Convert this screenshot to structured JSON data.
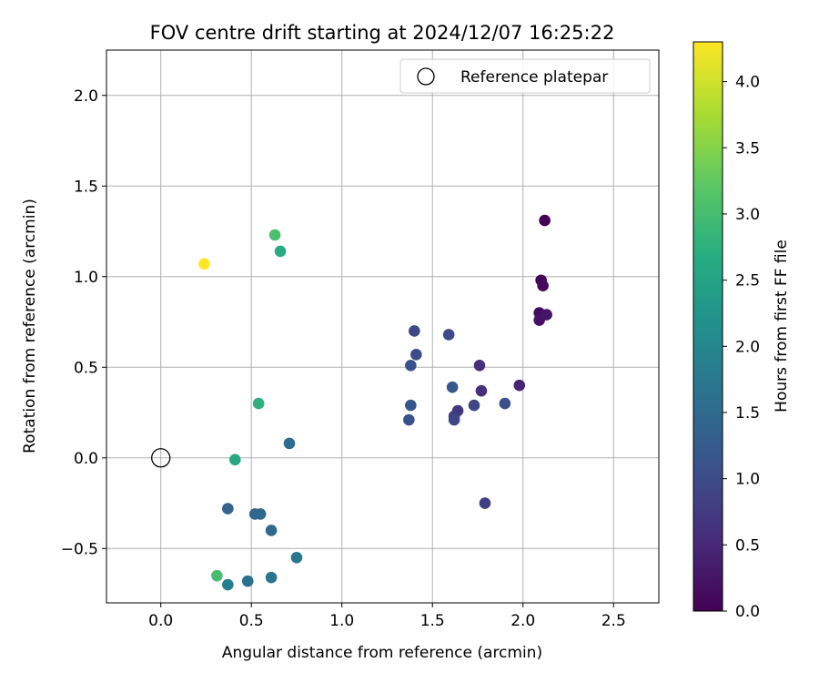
{
  "chart_data": {
    "type": "scatter",
    "title": "FOV centre drift starting at 2024/12/07 16:25:22",
    "xlabel": "Angular distance from reference (arcmin)",
    "ylabel": "Rotation from reference (arcmin)",
    "xlim": [
      -0.3,
      2.75
    ],
    "ylim": [
      -0.8,
      2.25
    ],
    "xticks": [
      0.0,
      0.5,
      1.0,
      1.5,
      2.0,
      2.5
    ],
    "yticks": [
      -0.5,
      0.0,
      0.5,
      1.0,
      1.5,
      2.0
    ],
    "xtick_labels": [
      "0.0",
      "0.5",
      "1.0",
      "1.5",
      "2.0",
      "2.5"
    ],
    "ytick_labels": [
      "−0.5",
      "0.0",
      "0.5",
      "1.0",
      "1.5",
      "2.0"
    ],
    "grid": true,
    "legend": {
      "placement": "top-right",
      "entries": [
        "Reference platepar"
      ]
    },
    "reference_point": {
      "x": 0.0,
      "y": 0.0,
      "label": "Reference platepar"
    },
    "colorbar": {
      "label": "Hours from first FF file",
      "colormap": "viridis",
      "range": [
        0.0,
        4.3
      ],
      "ticks": [
        0.0,
        0.5,
        1.0,
        1.5,
        2.0,
        2.5,
        3.0,
        3.5,
        4.0
      ],
      "tick_labels": [
        "0.0",
        "0.5",
        "1.0",
        "1.5",
        "2.0",
        "2.5",
        "3.0",
        "3.5",
        "4.0"
      ]
    },
    "points": [
      {
        "x": 2.12,
        "y": 1.31,
        "hours": 0.0
      },
      {
        "x": 2.1,
        "y": 0.98,
        "hours": 0.05
      },
      {
        "x": 2.11,
        "y": 0.95,
        "hours": 0.1
      },
      {
        "x": 2.09,
        "y": 0.8,
        "hours": 0.15
      },
      {
        "x": 2.09,
        "y": 0.76,
        "hours": 0.2
      },
      {
        "x": 2.13,
        "y": 0.79,
        "hours": 0.25
      },
      {
        "x": 1.98,
        "y": 0.4,
        "hours": 0.45
      },
      {
        "x": 1.76,
        "y": 0.51,
        "hours": 0.6
      },
      {
        "x": 1.77,
        "y": 0.37,
        "hours": 0.6
      },
      {
        "x": 1.64,
        "y": 0.26,
        "hours": 0.7
      },
      {
        "x": 1.62,
        "y": 0.23,
        "hours": 0.75
      },
      {
        "x": 1.79,
        "y": -0.25,
        "hours": 0.8
      },
      {
        "x": 1.73,
        "y": 0.29,
        "hours": 0.9
      },
      {
        "x": 1.62,
        "y": 0.21,
        "hours": 0.9
      },
      {
        "x": 1.4,
        "y": 0.7,
        "hours": 0.95
      },
      {
        "x": 1.41,
        "y": 0.57,
        "hours": 1.0
      },
      {
        "x": 1.59,
        "y": 0.68,
        "hours": 1.0
      },
      {
        "x": 1.9,
        "y": 0.3,
        "hours": 1.05
      },
      {
        "x": 1.38,
        "y": 0.51,
        "hours": 1.1
      },
      {
        "x": 1.37,
        "y": 0.21,
        "hours": 1.1
      },
      {
        "x": 1.38,
        "y": 0.29,
        "hours": 1.15
      },
      {
        "x": 1.61,
        "y": 0.39,
        "hours": 1.2
      },
      {
        "x": 0.37,
        "y": -0.28,
        "hours": 1.4
      },
      {
        "x": 0.52,
        "y": -0.31,
        "hours": 1.45
      },
      {
        "x": 0.55,
        "y": -0.31,
        "hours": 1.5
      },
      {
        "x": 0.61,
        "y": -0.4,
        "hours": 1.5
      },
      {
        "x": 0.71,
        "y": 0.08,
        "hours": 1.55
      },
      {
        "x": 0.48,
        "y": -0.68,
        "hours": 1.6
      },
      {
        "x": 0.61,
        "y": -0.66,
        "hours": 1.65
      },
      {
        "x": 0.75,
        "y": -0.55,
        "hours": 1.75
      },
      {
        "x": 0.37,
        "y": -0.7,
        "hours": 1.85
      },
      {
        "x": 0.41,
        "y": -0.01,
        "hours": 2.6
      },
      {
        "x": 0.54,
        "y": 0.3,
        "hours": 2.75
      },
      {
        "x": 0.66,
        "y": 1.14,
        "hours": 2.65
      },
      {
        "x": 0.31,
        "y": -0.65,
        "hours": 3.0
      },
      {
        "x": 0.63,
        "y": 1.23,
        "hours": 3.05
      },
      {
        "x": 0.24,
        "y": 1.07,
        "hours": 4.3
      }
    ]
  }
}
